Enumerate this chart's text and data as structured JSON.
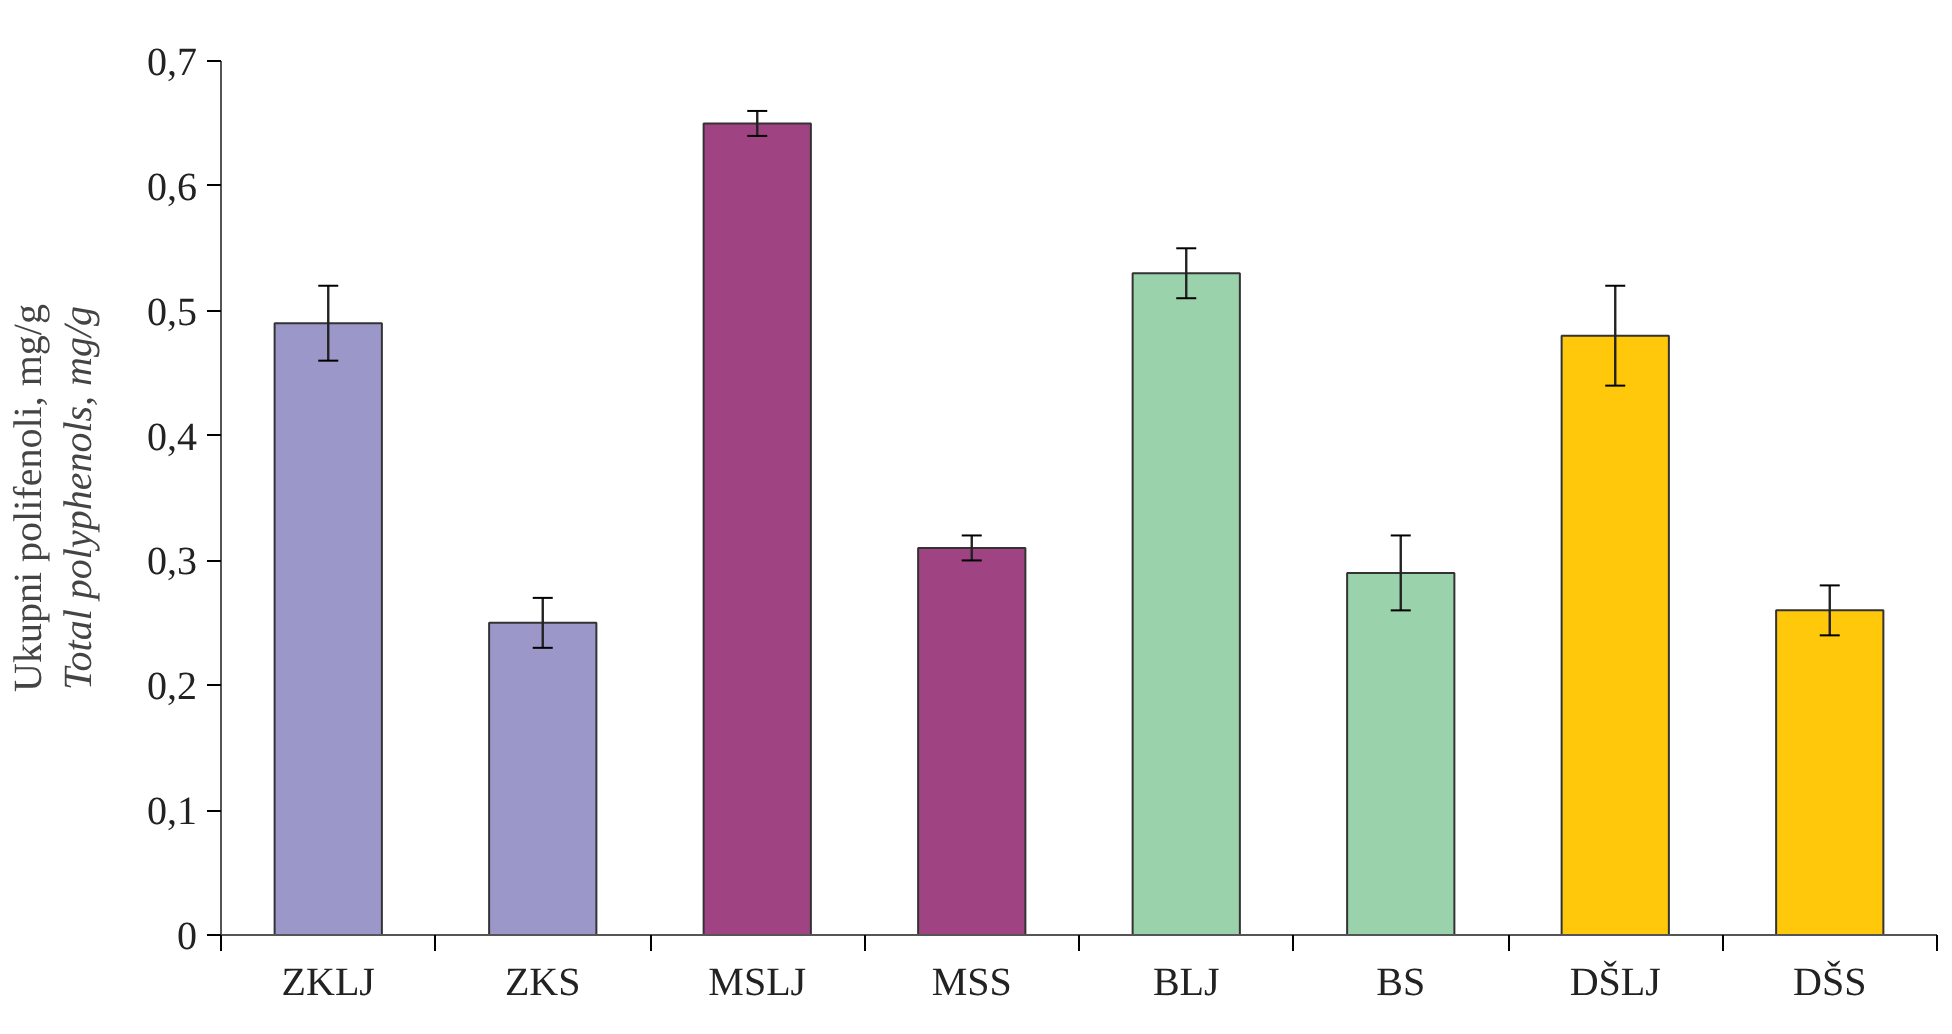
{
  "chart_data": {
    "type": "bar",
    "ylabel": [
      "Ukupni polifenoli, mg/g",
      "Total polyphenols, mg/g"
    ],
    "categories": [
      "ZKLJ",
      "ZKS",
      "MSLJ",
      "MSS",
      "BLJ",
      "BS",
      "DŠLJ",
      "DŠS"
    ],
    "values": [
      0.49,
      0.25,
      0.65,
      0.31,
      0.53,
      0.29,
      0.48,
      0.26
    ],
    "errors": [
      0.03,
      0.02,
      0.01,
      0.01,
      0.02,
      0.03,
      0.04,
      0.02
    ],
    "colors": [
      "#9b97c9",
      "#9b97c9",
      "#a04383",
      "#a04383",
      "#99d2ab",
      "#99d2ab",
      "#ffc80a",
      "#ffc80a"
    ],
    "ylim": [
      0,
      0.7
    ],
    "yticks": [
      {
        "value": 0,
        "label": "0"
      },
      {
        "value": 0.1,
        "label": "0,1"
      },
      {
        "value": 0.2,
        "label": "0,2"
      },
      {
        "value": 0.3,
        "label": "0,3"
      },
      {
        "value": 0.4,
        "label": "0,4"
      },
      {
        "value": 0.5,
        "label": "0,5"
      },
      {
        "value": 0.6,
        "label": "0,6"
      },
      {
        "value": 0.7,
        "label": "0,7"
      }
    ],
    "grid": false
  }
}
